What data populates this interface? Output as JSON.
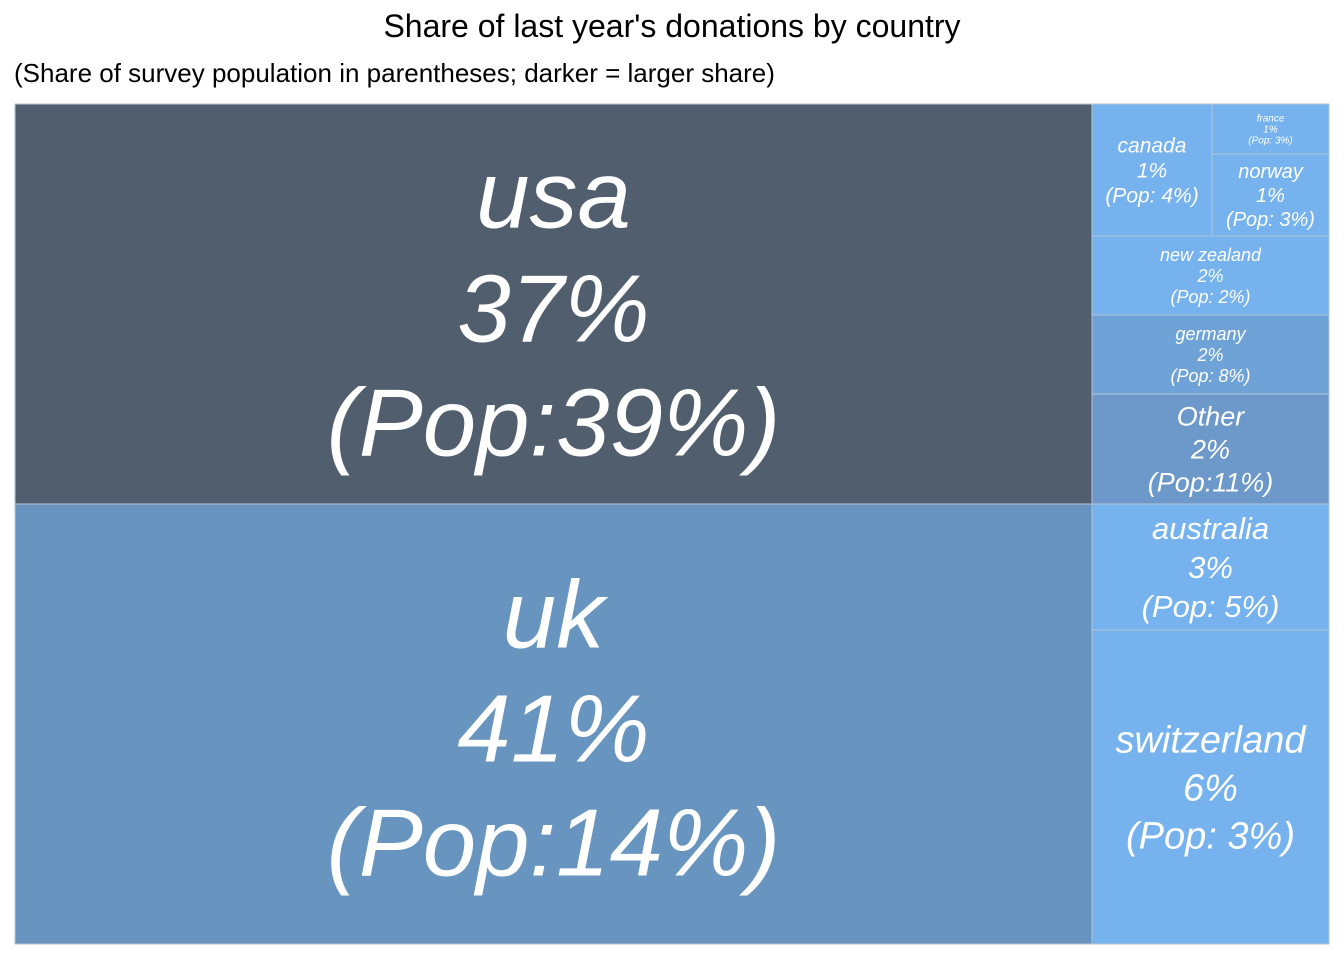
{
  "chart_data": {
    "type": "treemap",
    "title": "Share of last year's donations by country",
    "subtitle": "(Share of survey population in parentheses; darker = larger share)",
    "color_low": "#75b2ee",
    "color_high": "#515e6d",
    "border_color": "#b4c6d8",
    "tiles": [
      {
        "name": "usa",
        "share": "37%",
        "pop": "(Pop:39%)",
        "donation_share": 37,
        "pop_share": 39,
        "color": "#515e6d"
      },
      {
        "name": "uk",
        "share": "41%",
        "pop": "(Pop:14%)",
        "donation_share": 41,
        "pop_share": 14,
        "color": "#6894c0"
      },
      {
        "name": "canada",
        "share": "1%",
        "pop": "(Pop: 4%)",
        "donation_share": 1,
        "pop_share": 4,
        "color": "#75b2ee"
      },
      {
        "name": "france",
        "share": "1%",
        "pop": "(Pop: 3%)",
        "donation_share": 1,
        "pop_share": 3,
        "color": "#75b2ee"
      },
      {
        "name": "norway",
        "share": "1%",
        "pop": "(Pop: 3%)",
        "donation_share": 1,
        "pop_share": 3,
        "color": "#75b2ee"
      },
      {
        "name": "new zealand",
        "share": "2%",
        "pop": "(Pop: 2%)",
        "donation_share": 2,
        "pop_share": 2,
        "color": "#75b2ee"
      },
      {
        "name": "germany",
        "share": "2%",
        "pop": "(Pop: 8%)",
        "donation_share": 2,
        "pop_share": 8,
        "color": "#6fa3d8"
      },
      {
        "name": "Other",
        "share": "2%",
        "pop": "(Pop:11%)",
        "donation_share": 2,
        "pop_share": 11,
        "color": "#6c98ca"
      },
      {
        "name": "australia",
        "share": "3%",
        "pop": "(Pop: 5%)",
        "donation_share": 3,
        "pop_share": 5,
        "color": "#75b2ee"
      },
      {
        "name": "switzerland",
        "share": "6%",
        "pop": "(Pop: 3%)",
        "donation_share": 6,
        "pop_share": 3,
        "color": "#75b2ee"
      }
    ]
  }
}
